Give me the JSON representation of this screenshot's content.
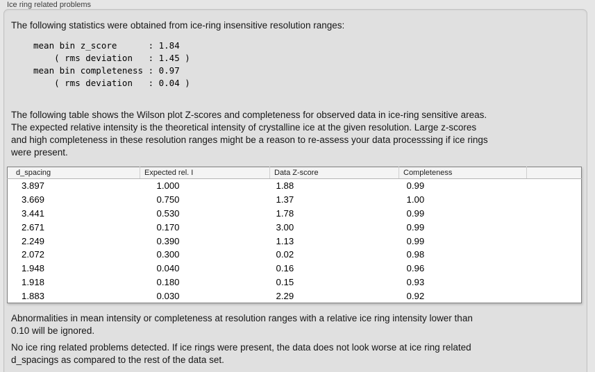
{
  "colors": {
    "page_bg": "#e6e6e6",
    "box_bg": "#e0e0e0",
    "box_border": "#c2c2c2",
    "table_border": "#7f7f7f",
    "table_header_bg": "#f4f4f4",
    "text": "#1a1a1a"
  },
  "panel": {
    "title": "Ice ring related problems"
  },
  "intro": "The following statistics were obtained from ice-ring insensitive resolution ranges:",
  "stats": {
    "lines": [
      "mean bin z_score      : 1.84",
      "    ( rms deviation   : 1.45 )",
      "mean bin completeness : 0.97",
      "    ( rms deviation   : 0.04 )"
    ]
  },
  "description": {
    "lines": [
      "The following table shows the Wilson plot Z-scores and completeness for observed data in ice-ring sensitive areas.",
      "The expected relative intensity is the theoretical intensity of crystalline ice at the given resolution. Large z-scores",
      "and high completeness in these resolution ranges might be a reason to re-assess your data processsing if ice rings",
      "were present."
    ]
  },
  "table": {
    "columns": [
      "d_spacing",
      "Expected rel. I",
      "Data Z-score",
      "Completeness"
    ],
    "rows": [
      {
        "d_spacing": "3.897",
        "expected_rel_i": "1.000",
        "data_z_score": "1.88",
        "completeness": "0.99"
      },
      {
        "d_spacing": "3.669",
        "expected_rel_i": "0.750",
        "data_z_score": "1.37",
        "completeness": "1.00"
      },
      {
        "d_spacing": "3.441",
        "expected_rel_i": "0.530",
        "data_z_score": "1.78",
        "completeness": "0.99"
      },
      {
        "d_spacing": "2.671",
        "expected_rel_i": "0.170",
        "data_z_score": "3.00",
        "completeness": "0.99"
      },
      {
        "d_spacing": "2.249",
        "expected_rel_i": "0.390",
        "data_z_score": "1.13",
        "completeness": "0.99"
      },
      {
        "d_spacing": "2.072",
        "expected_rel_i": "0.300",
        "data_z_score": "0.02",
        "completeness": "0.98"
      },
      {
        "d_spacing": "1.948",
        "expected_rel_i": "0.040",
        "data_z_score": "0.16",
        "completeness": "0.96"
      },
      {
        "d_spacing": "1.918",
        "expected_rel_i": "0.180",
        "data_z_score": "0.15",
        "completeness": "0.93"
      },
      {
        "d_spacing": "1.883",
        "expected_rel_i": "0.030",
        "data_z_score": "2.29",
        "completeness": "0.92"
      }
    ]
  },
  "note": {
    "lines": [
      "Abnormalities in mean intensity or completeness at resolution ranges with a relative ice ring intensity lower than",
      "0.10 will be ignored."
    ]
  },
  "conclusion": {
    "lines": [
      "No ice ring related problems detected. If ice rings were present, the data does not look worse at ice ring related",
      "d_spacings as compared to the rest of the data set."
    ]
  }
}
